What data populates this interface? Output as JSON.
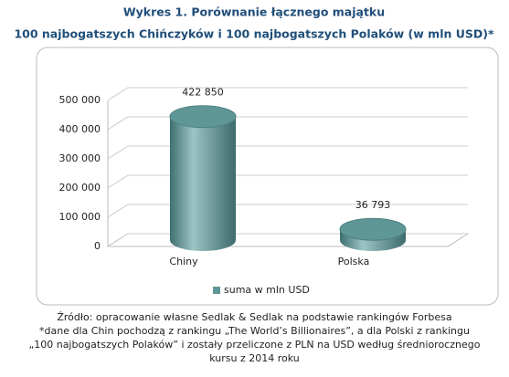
{
  "chart_data": {
    "type": "bar",
    "title": [
      "Wykres 1. Porównanie łącznego majątku",
      "100 najbogatszych Chińczyków i 100 najbogatszych Polaków (w mln USD)*"
    ],
    "categories": [
      "Chiny",
      "Polska"
    ],
    "series": [
      {
        "name": "suma w mln USD",
        "color": "#5f9696",
        "values": [
          422850,
          36793
        ],
        "value_labels": [
          "422 850",
          "36 793"
        ]
      }
    ],
    "ylim": [
      0,
      500000
    ],
    "yticks": [
      0,
      {
        "value": 100000,
        "label": "100 000"
      },
      {
        "value": 200000,
        "label": "200 000"
      },
      {
        "value": 300000,
        "label": "300 000"
      },
      {
        "value": 400000,
        "label": "400 000"
      },
      {
        "value": 500000,
        "label": "500 000"
      }
    ],
    "grid": true,
    "legend": "bottom"
  },
  "notes": [
    "Źródło: opracowanie własne Sedlak & Sedlak na podstawie rankingów Forbesa",
    "*dane dla Chin pochodzą  z rankingu „The World’s Billionaires”, a dla Polski z rankingu „100 najbogatszych  Polaków”  i zostały przeliczone z PLN na USD według średniorocznego kursu z 2014 roku"
  ]
}
